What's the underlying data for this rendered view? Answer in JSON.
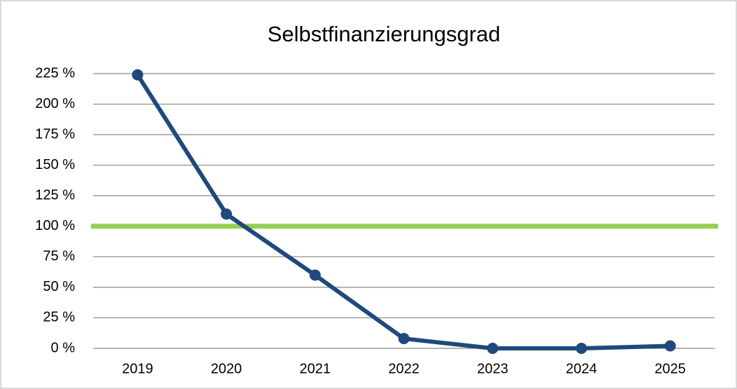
{
  "chart_data": {
    "type": "line",
    "title": "Selbstfinanzierungsgrad",
    "categories": [
      "2019",
      "2020",
      "2021",
      "2022",
      "2023",
      "2024",
      "2025"
    ],
    "series": [
      {
        "color": "#1f497d",
        "values": [
          224,
          110,
          60,
          8,
          0,
          0,
          2
        ]
      }
    ],
    "reference_line": {
      "value": 100,
      "color": "#92d050"
    },
    "ylim": [
      0,
      225
    ],
    "yticks": [
      {
        "value": 0,
        "label": "0 %"
      },
      {
        "value": 25,
        "label": "25 %"
      },
      {
        "value": 50,
        "label": "50 %"
      },
      {
        "value": 75,
        "label": "75 %"
      },
      {
        "value": 100,
        "label": "100 %"
      },
      {
        "value": 125,
        "label": "125 %"
      },
      {
        "value": 150,
        "label": "150 %"
      },
      {
        "value": 175,
        "label": "175 %"
      },
      {
        "value": 200,
        "label": "200 %"
      },
      {
        "value": 225,
        "label": "225 %"
      }
    ],
    "grid": true
  }
}
